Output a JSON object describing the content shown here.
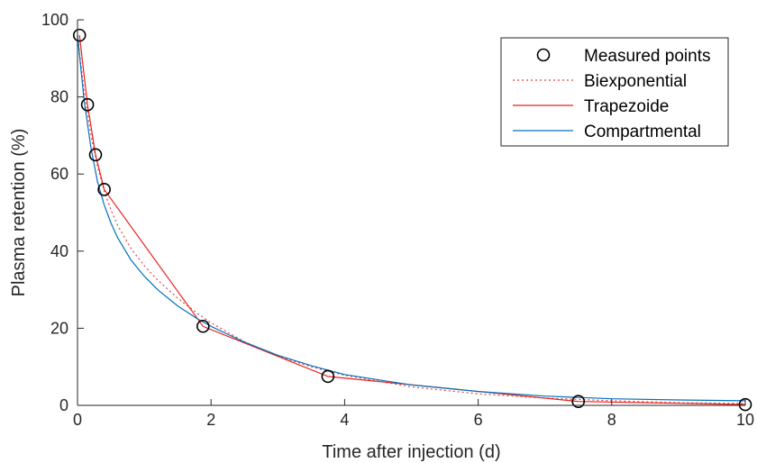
{
  "chart_data": {
    "type": "line",
    "xlabel": "Time after injection (d)",
    "ylabel": "Plasma retention (%)",
    "xlim": [
      0,
      10
    ],
    "ylim": [
      0,
      100
    ],
    "xticks": [
      0,
      2,
      4,
      6,
      8,
      10
    ],
    "yticks": [
      0,
      20,
      40,
      60,
      80,
      100
    ],
    "grid": false,
    "legend_position": "top-right",
    "legend": [
      "Measured points",
      "Biexponential",
      "Trapezoide",
      "Compartmental"
    ],
    "series": [
      {
        "name": "Measured points",
        "style": "markers",
        "color": "#000000",
        "x": [
          0.03,
          0.15,
          0.27,
          0.4,
          1.88,
          3.75,
          7.5,
          10.0
        ],
        "y": [
          96,
          78,
          65,
          56,
          20.5,
          7.5,
          1.0,
          0.2
        ]
      },
      {
        "name": "Biexponential",
        "style": "dotted",
        "color": "#e04545",
        "x": [
          0,
          0.1,
          0.2,
          0.3,
          0.4,
          0.5,
          0.6,
          0.8,
          1.0,
          1.2,
          1.5,
          1.8,
          2.0,
          2.5,
          3.0,
          3.5,
          4.0,
          5.0,
          6.0,
          7.0,
          8.0,
          9.0,
          10.0
        ],
        "y": [
          96,
          81.3,
          70.3,
          62.0,
          55.6,
          50.7,
          46.7,
          40.7,
          36.2,
          32.5,
          27.8,
          23.8,
          21.4,
          16.5,
          12.8,
          10.0,
          7.8,
          4.8,
          3.0,
          1.9,
          1.2,
          0.7,
          0.5
        ]
      },
      {
        "name": "Trapezoide",
        "style": "solid",
        "color": "#e8211c",
        "x": [
          0.03,
          0.15,
          0.27,
          0.4,
          1.88,
          3.75,
          7.5,
          10.0
        ],
        "y": [
          96,
          78,
          65,
          56,
          20.5,
          7.5,
          1.0,
          0.2
        ]
      },
      {
        "name": "Compartmental",
        "style": "solid",
        "color": "#0072bd",
        "x": [
          0,
          0.1,
          0.2,
          0.3,
          0.4,
          0.5,
          0.6,
          0.8,
          1.0,
          1.2,
          1.5,
          1.8,
          2.0,
          2.5,
          3.0,
          3.5,
          4.0,
          5.0,
          6.0,
          7.0,
          8.0,
          9.0,
          10.0
        ],
        "y": [
          96,
          79,
          67,
          58,
          52,
          47.3,
          43.5,
          37.7,
          33.5,
          30.0,
          25.8,
          22.4,
          20.5,
          16.4,
          13.0,
          10.3,
          8.0,
          5.3,
          3.6,
          2.4,
          1.7,
          1.4,
          1.2
        ]
      }
    ]
  }
}
